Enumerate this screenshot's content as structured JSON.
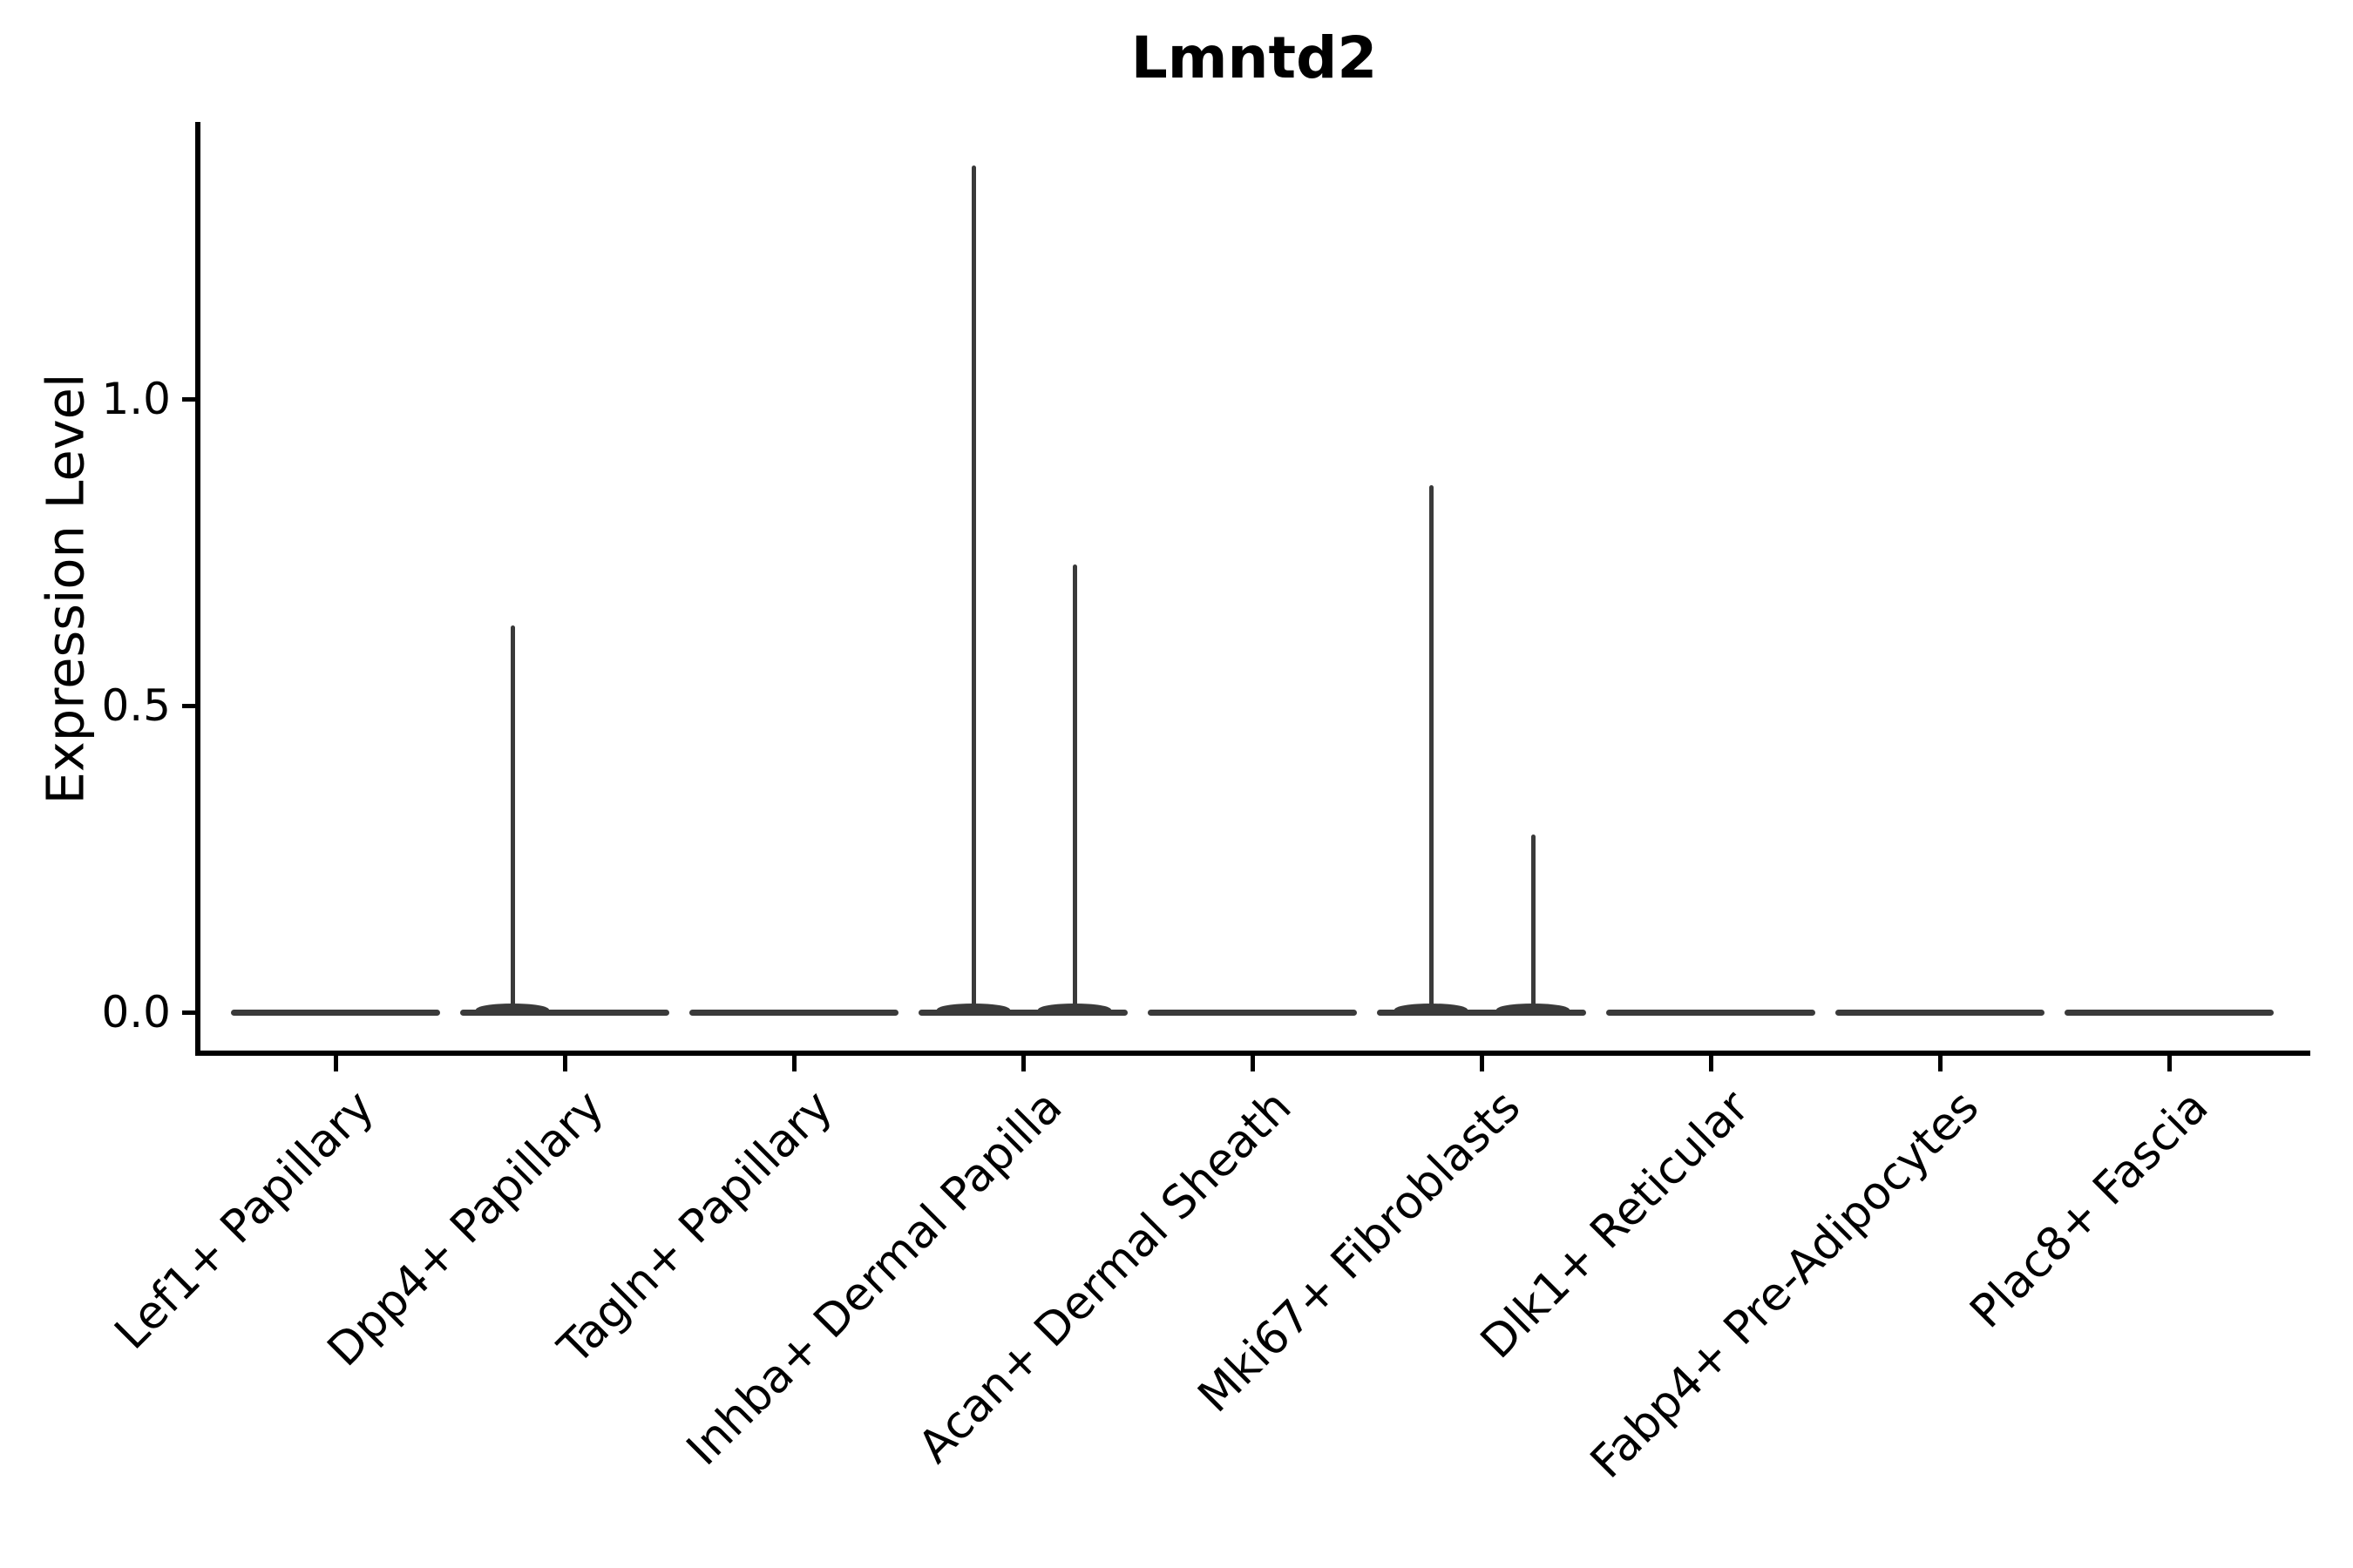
{
  "title": "Lmntd2",
  "axes": {
    "ylabel": "Expression Level",
    "ytick_labels": [
      "0.0",
      "0.5",
      "1.0"
    ],
    "ytick_values": [
      0.0,
      0.5,
      1.0
    ]
  },
  "chart_data": {
    "type": "violin",
    "title": "Lmntd2",
    "xlabel": "",
    "ylabel": "Expression Level",
    "yticks": [
      0.0,
      0.5,
      1.0
    ],
    "ylim": [
      -0.07,
      1.45
    ],
    "grid": false,
    "legend_position": "none",
    "categories": [
      "Lef1+ Papillary",
      "Dpp4+ Papillary",
      "Tagln+ Papillary",
      "Inhba+ Dermal Papilla",
      "Acan+ Dermal Sheath",
      "Mki67+ Fibroblasts",
      "Dlk1+ Reticular",
      "Fabp4+ Pre-Adipocytes",
      "Plac8+ Fascia"
    ],
    "description": "Violin plot of Lmntd2 expression; every cluster sits flat at expression 0 with thin density spikes where rare cells express the gene",
    "violins": [
      {
        "category": "Lef1+ Papillary",
        "baseline_value": 0,
        "spikes": []
      },
      {
        "category": "Dpp4+ Papillary",
        "baseline_value": 0,
        "spikes": [
          {
            "value": 0.63,
            "x_offset": -60
          }
        ]
      },
      {
        "category": "Tagln+ Papillary",
        "baseline_value": 0,
        "spikes": []
      },
      {
        "category": "Inhba+ Dermal Papilla",
        "baseline_value": 0,
        "spikes": [
          {
            "value": 1.38,
            "x_offset": -57
          },
          {
            "value": 0.73,
            "x_offset": 59
          }
        ]
      },
      {
        "category": "Acan+ Dermal Sheath",
        "baseline_value": 0,
        "spikes": []
      },
      {
        "category": "Mki67+ Fibroblasts",
        "baseline_value": 0,
        "spikes": [
          {
            "value": 0.86,
            "x_offset": -58
          },
          {
            "value": 0.29,
            "x_offset": 59
          }
        ]
      },
      {
        "category": "Dlk1+ Reticular",
        "baseline_value": 0,
        "spikes": []
      },
      {
        "category": "Fabp4+ Pre-Adipocytes",
        "baseline_value": 0,
        "spikes": []
      },
      {
        "category": "Plac8+ Fascia",
        "baseline_value": 0,
        "spikes": []
      }
    ],
    "colors": {
      "violin": "#3a3a3a",
      "axis": "#000000",
      "text": "#000000",
      "background": "#ffffff"
    }
  }
}
